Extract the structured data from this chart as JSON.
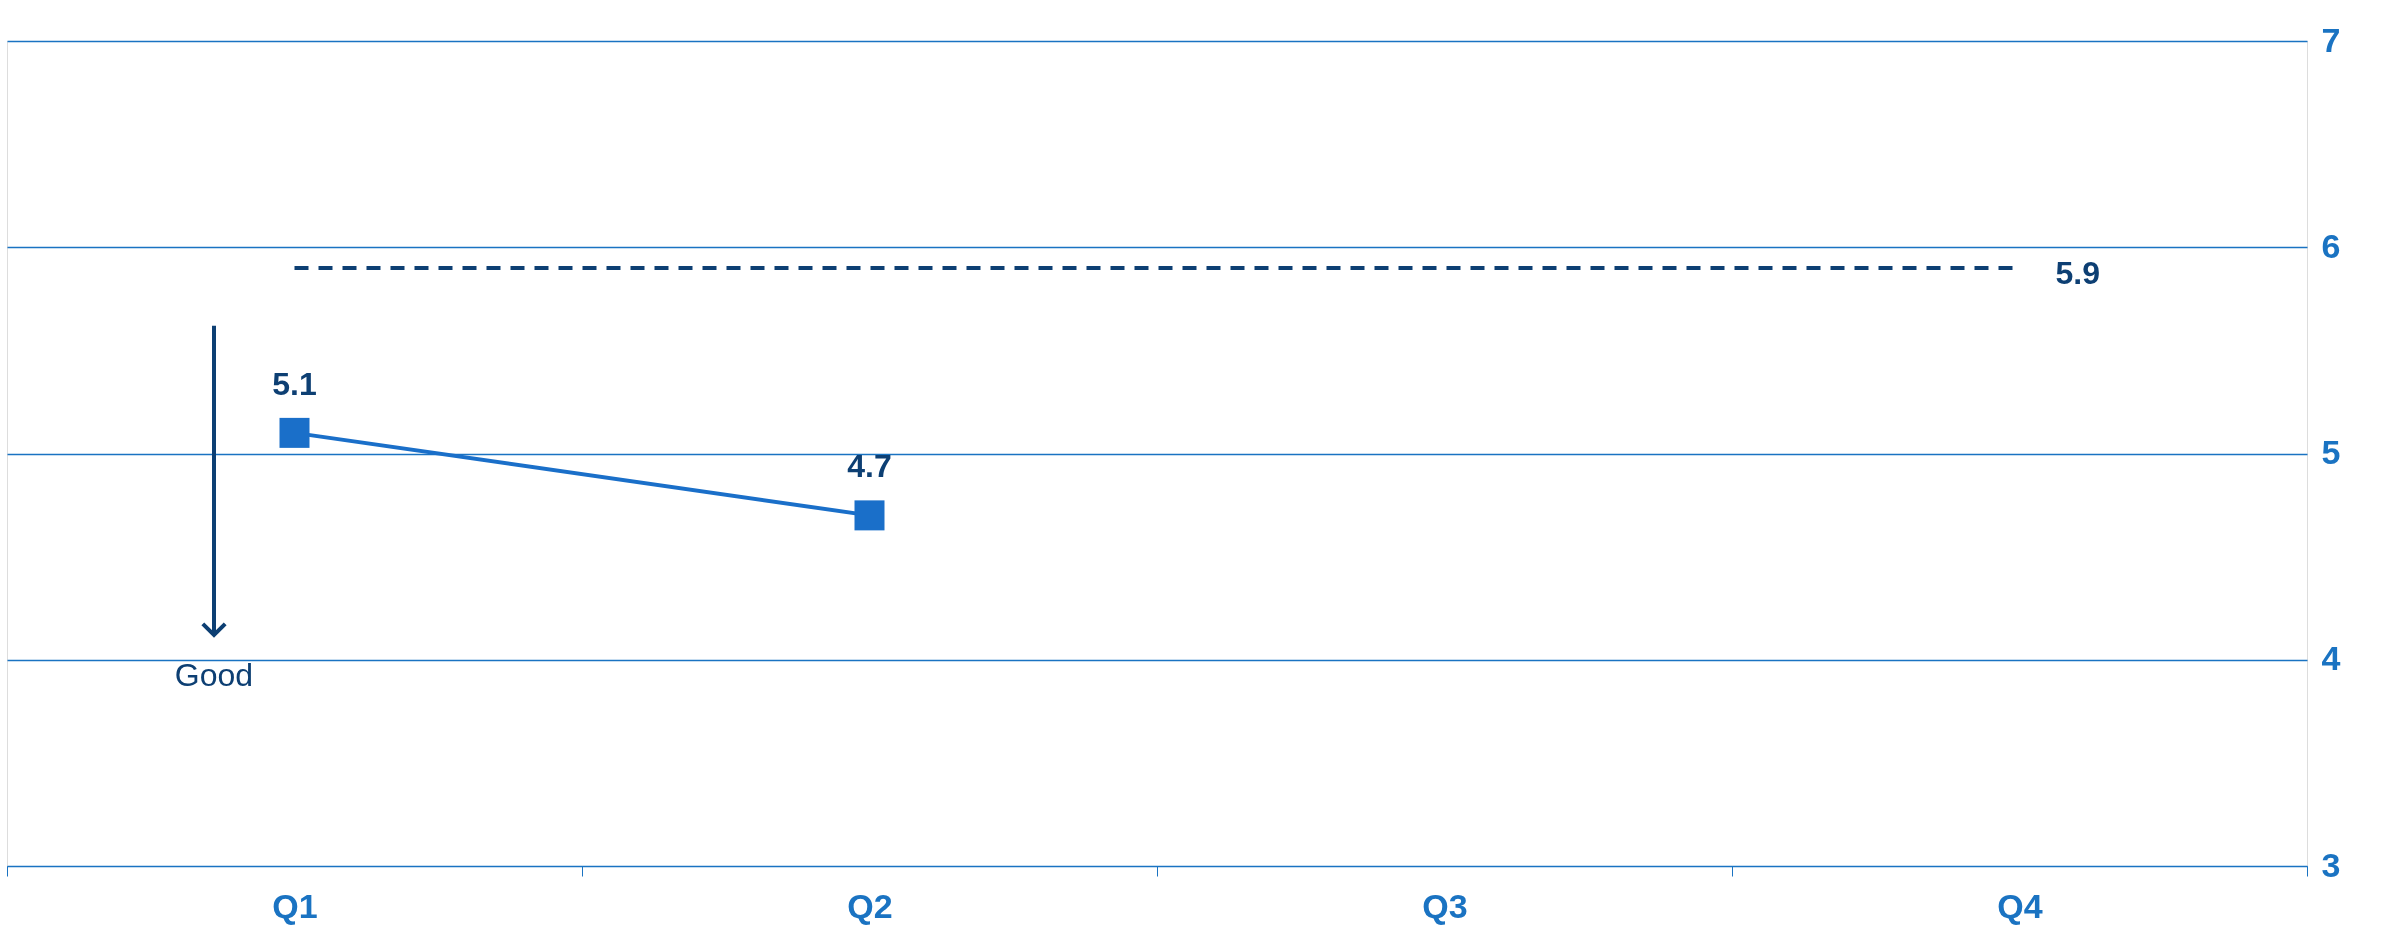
{
  "chart_data": {
    "type": "line",
    "categories": [
      "Q1",
      "Q2",
      "Q3",
      "Q4"
    ],
    "series": [
      {
        "color": "#1a6fc9",
        "values": [
          5.1,
          4.7,
          null,
          null
        ]
      }
    ],
    "marker": "square",
    "line_style": "solid",
    "data_labels": true,
    "ylim": [
      3,
      7
    ],
    "yticks": [
      3,
      4,
      5,
      6,
      7
    ],
    "grid": "y",
    "ref_lines": [
      {
        "axis": "y",
        "value": 5.9,
        "label": "5.9",
        "color": "#0d3f73",
        "line_style": "dashed"
      }
    ],
    "annotations": [
      "Good"
    ]
  }
}
